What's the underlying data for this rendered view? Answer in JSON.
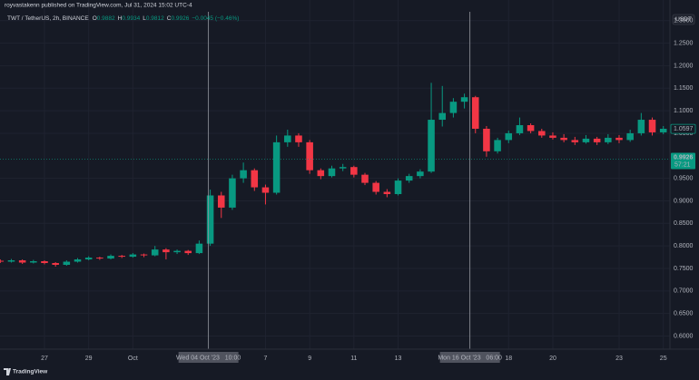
{
  "header": {
    "publisher": "royvastakenn published on TradingView.com, Jul 31, 2024 15:02 UTC-4"
  },
  "chart_data": {
    "type": "candlestick",
    "symbol": "TWT / TetherUS, 2h, BINANCE",
    "readout_labels": [
      "O",
      "H",
      "L",
      "C"
    ],
    "readout": {
      "open": 0.9882,
      "high": 0.9934,
      "low": 0.9812,
      "close": 0.9926,
      "change": "−0.0045 (−0.46%)"
    },
    "currency": "USDT",
    "up_color": "#089981",
    "down_color": "#f23645",
    "x": [
      -2,
      -1.5,
      -1,
      -0.5,
      0,
      0.5,
      1,
      1.5,
      2,
      2.5,
      3,
      3.5,
      4,
      4.5,
      5,
      5.5,
      6,
      6.5,
      7,
      7.5,
      8,
      8.5,
      9,
      9.5,
      10,
      10.5,
      11,
      11.5,
      12,
      12.5,
      13,
      13.5,
      14,
      14.5,
      15,
      15.5,
      16,
      16.5,
      17,
      17.5,
      18,
      18.5,
      19,
      19.5,
      20,
      20.5,
      21,
      21.5,
      22,
      22.5,
      23,
      23.5,
      24,
      24.5,
      25,
      25.5,
      26,
      26.5,
      27,
      27.5,
      28
    ],
    "open": [
      0.767,
      0.765,
      0.768,
      0.763,
      0.766,
      0.762,
      0.758,
      0.765,
      0.77,
      0.774,
      0.772,
      0.778,
      0.776,
      0.781,
      0.779,
      0.792,
      0.786,
      0.789,
      0.784,
      0.805,
      0.912,
      0.885,
      0.95,
      0.968,
      0.93,
      0.918,
      1.03,
      1.045,
      1.03,
      0.968,
      0.955,
      0.972,
      0.975,
      0.958,
      0.94,
      0.92,
      0.915,
      0.945,
      0.955,
      0.965,
      1.08,
      1.095,
      1.12,
      1.13,
      1.06,
      1.01,
      1.035,
      1.05,
      1.068,
      1.055,
      1.045,
      1.04,
      1.035,
      1.03,
      1.038,
      1.03,
      1.04,
      1.035,
      1.05,
      1.08,
      1.052
    ],
    "high": [
      0.77,
      0.771,
      0.77,
      0.769,
      0.768,
      0.764,
      0.768,
      0.773,
      0.777,
      0.776,
      0.781,
      0.78,
      0.784,
      0.783,
      0.8,
      0.795,
      0.792,
      0.791,
      0.812,
      0.925,
      0.92,
      0.958,
      0.985,
      0.972,
      0.936,
      1.045,
      1.058,
      1.05,
      1.035,
      0.972,
      0.978,
      0.982,
      0.978,
      0.962,
      0.944,
      0.926,
      0.95,
      0.96,
      0.97,
      1.162,
      1.155,
      1.128,
      1.138,
      1.133,
      1.066,
      1.04,
      1.056,
      1.085,
      1.072,
      1.06,
      1.052,
      1.048,
      1.042,
      1.046,
      1.042,
      1.048,
      1.046,
      1.058,
      1.095,
      1.085,
      1.066
    ],
    "low": [
      0.762,
      0.763,
      0.76,
      0.761,
      0.759,
      0.754,
      0.756,
      0.763,
      0.768,
      0.769,
      0.77,
      0.773,
      0.774,
      0.775,
      0.777,
      0.77,
      0.782,
      0.78,
      0.782,
      0.8,
      0.862,
      0.88,
      0.94,
      0.922,
      0.892,
      0.914,
      1.02,
      1.02,
      0.96,
      0.948,
      0.952,
      0.966,
      0.952,
      0.935,
      0.914,
      0.908,
      0.912,
      0.94,
      0.95,
      0.962,
      1.065,
      1.085,
      1.105,
      1.05,
      0.998,
      1.005,
      1.028,
      1.046,
      1.05,
      1.04,
      1.036,
      1.03,
      1.024,
      1.027,
      1.024,
      1.026,
      1.028,
      1.031,
      1.045,
      1.045,
      1.048
    ],
    "close": [
      0.765,
      0.768,
      0.763,
      0.766,
      0.762,
      0.758,
      0.765,
      0.77,
      0.774,
      0.772,
      0.778,
      0.776,
      0.781,
      0.779,
      0.792,
      0.786,
      0.789,
      0.784,
      0.805,
      0.912,
      0.885,
      0.95,
      0.968,
      0.93,
      0.918,
      1.03,
      1.045,
      1.03,
      0.968,
      0.955,
      0.972,
      0.975,
      0.958,
      0.94,
      0.92,
      0.915,
      0.945,
      0.955,
      0.965,
      1.08,
      1.095,
      1.12,
      1.13,
      1.06,
      1.01,
      1.035,
      1.05,
      1.068,
      1.055,
      1.045,
      1.04,
      1.035,
      1.03,
      1.038,
      1.03,
      1.04,
      1.035,
      1.05,
      1.08,
      1.052,
      1.06
    ],
    "xlim": [
      -2.012,
      28.3
    ],
    "xticks": [
      {
        "value": 0,
        "label": "27"
      },
      {
        "value": 2,
        "label": "29"
      },
      {
        "value": 4,
        "label": "Oct"
      },
      {
        "value": 10,
        "label": "7"
      },
      {
        "value": 12,
        "label": "9"
      },
      {
        "value": 14,
        "label": "11"
      },
      {
        "value": 16,
        "label": "13"
      },
      {
        "value": 21,
        "label": "18"
      },
      {
        "value": 23,
        "label": "20"
      },
      {
        "value": 26,
        "label": "23"
      },
      {
        "value": 28,
        "label": "25"
      }
    ],
    "ylim": [
      0.5708,
      1.3458
    ],
    "yticks": [
      {
        "value": 0.6,
        "label": "0.6000"
      },
      {
        "value": 0.65,
        "label": "0.6500"
      },
      {
        "value": 0.7,
        "label": "0.7000"
      },
      {
        "value": 0.75,
        "label": "0.7500"
      },
      {
        "value": 0.8,
        "label": "0.8000"
      },
      {
        "value": 0.85,
        "label": "0.8500"
      },
      {
        "value": 0.9,
        "label": "0.9000"
      },
      {
        "value": 0.95,
        "label": "0.9500"
      },
      {
        "value": 1.05,
        "label": "1.0500"
      },
      {
        "value": 1.1,
        "label": "1.1000"
      },
      {
        "value": 1.15,
        "label": "1.1500"
      },
      {
        "value": 1.2,
        "label": "1.2000"
      },
      {
        "value": 1.25,
        "label": "1.2500"
      },
      {
        "value": 1.3,
        "label": "1.3000"
      }
    ],
    "crosshairs": [
      {
        "x": 7.42,
        "label": "Wed 04 Oct '23   10:00"
      },
      {
        "x": 19.25,
        "label": "Mon 16 Oct '23   06:00"
      }
    ],
    "marked_price": 1.0597,
    "last_price": 0.9926,
    "countdown": "57:21"
  },
  "footer": {
    "brand": "TradingView"
  }
}
